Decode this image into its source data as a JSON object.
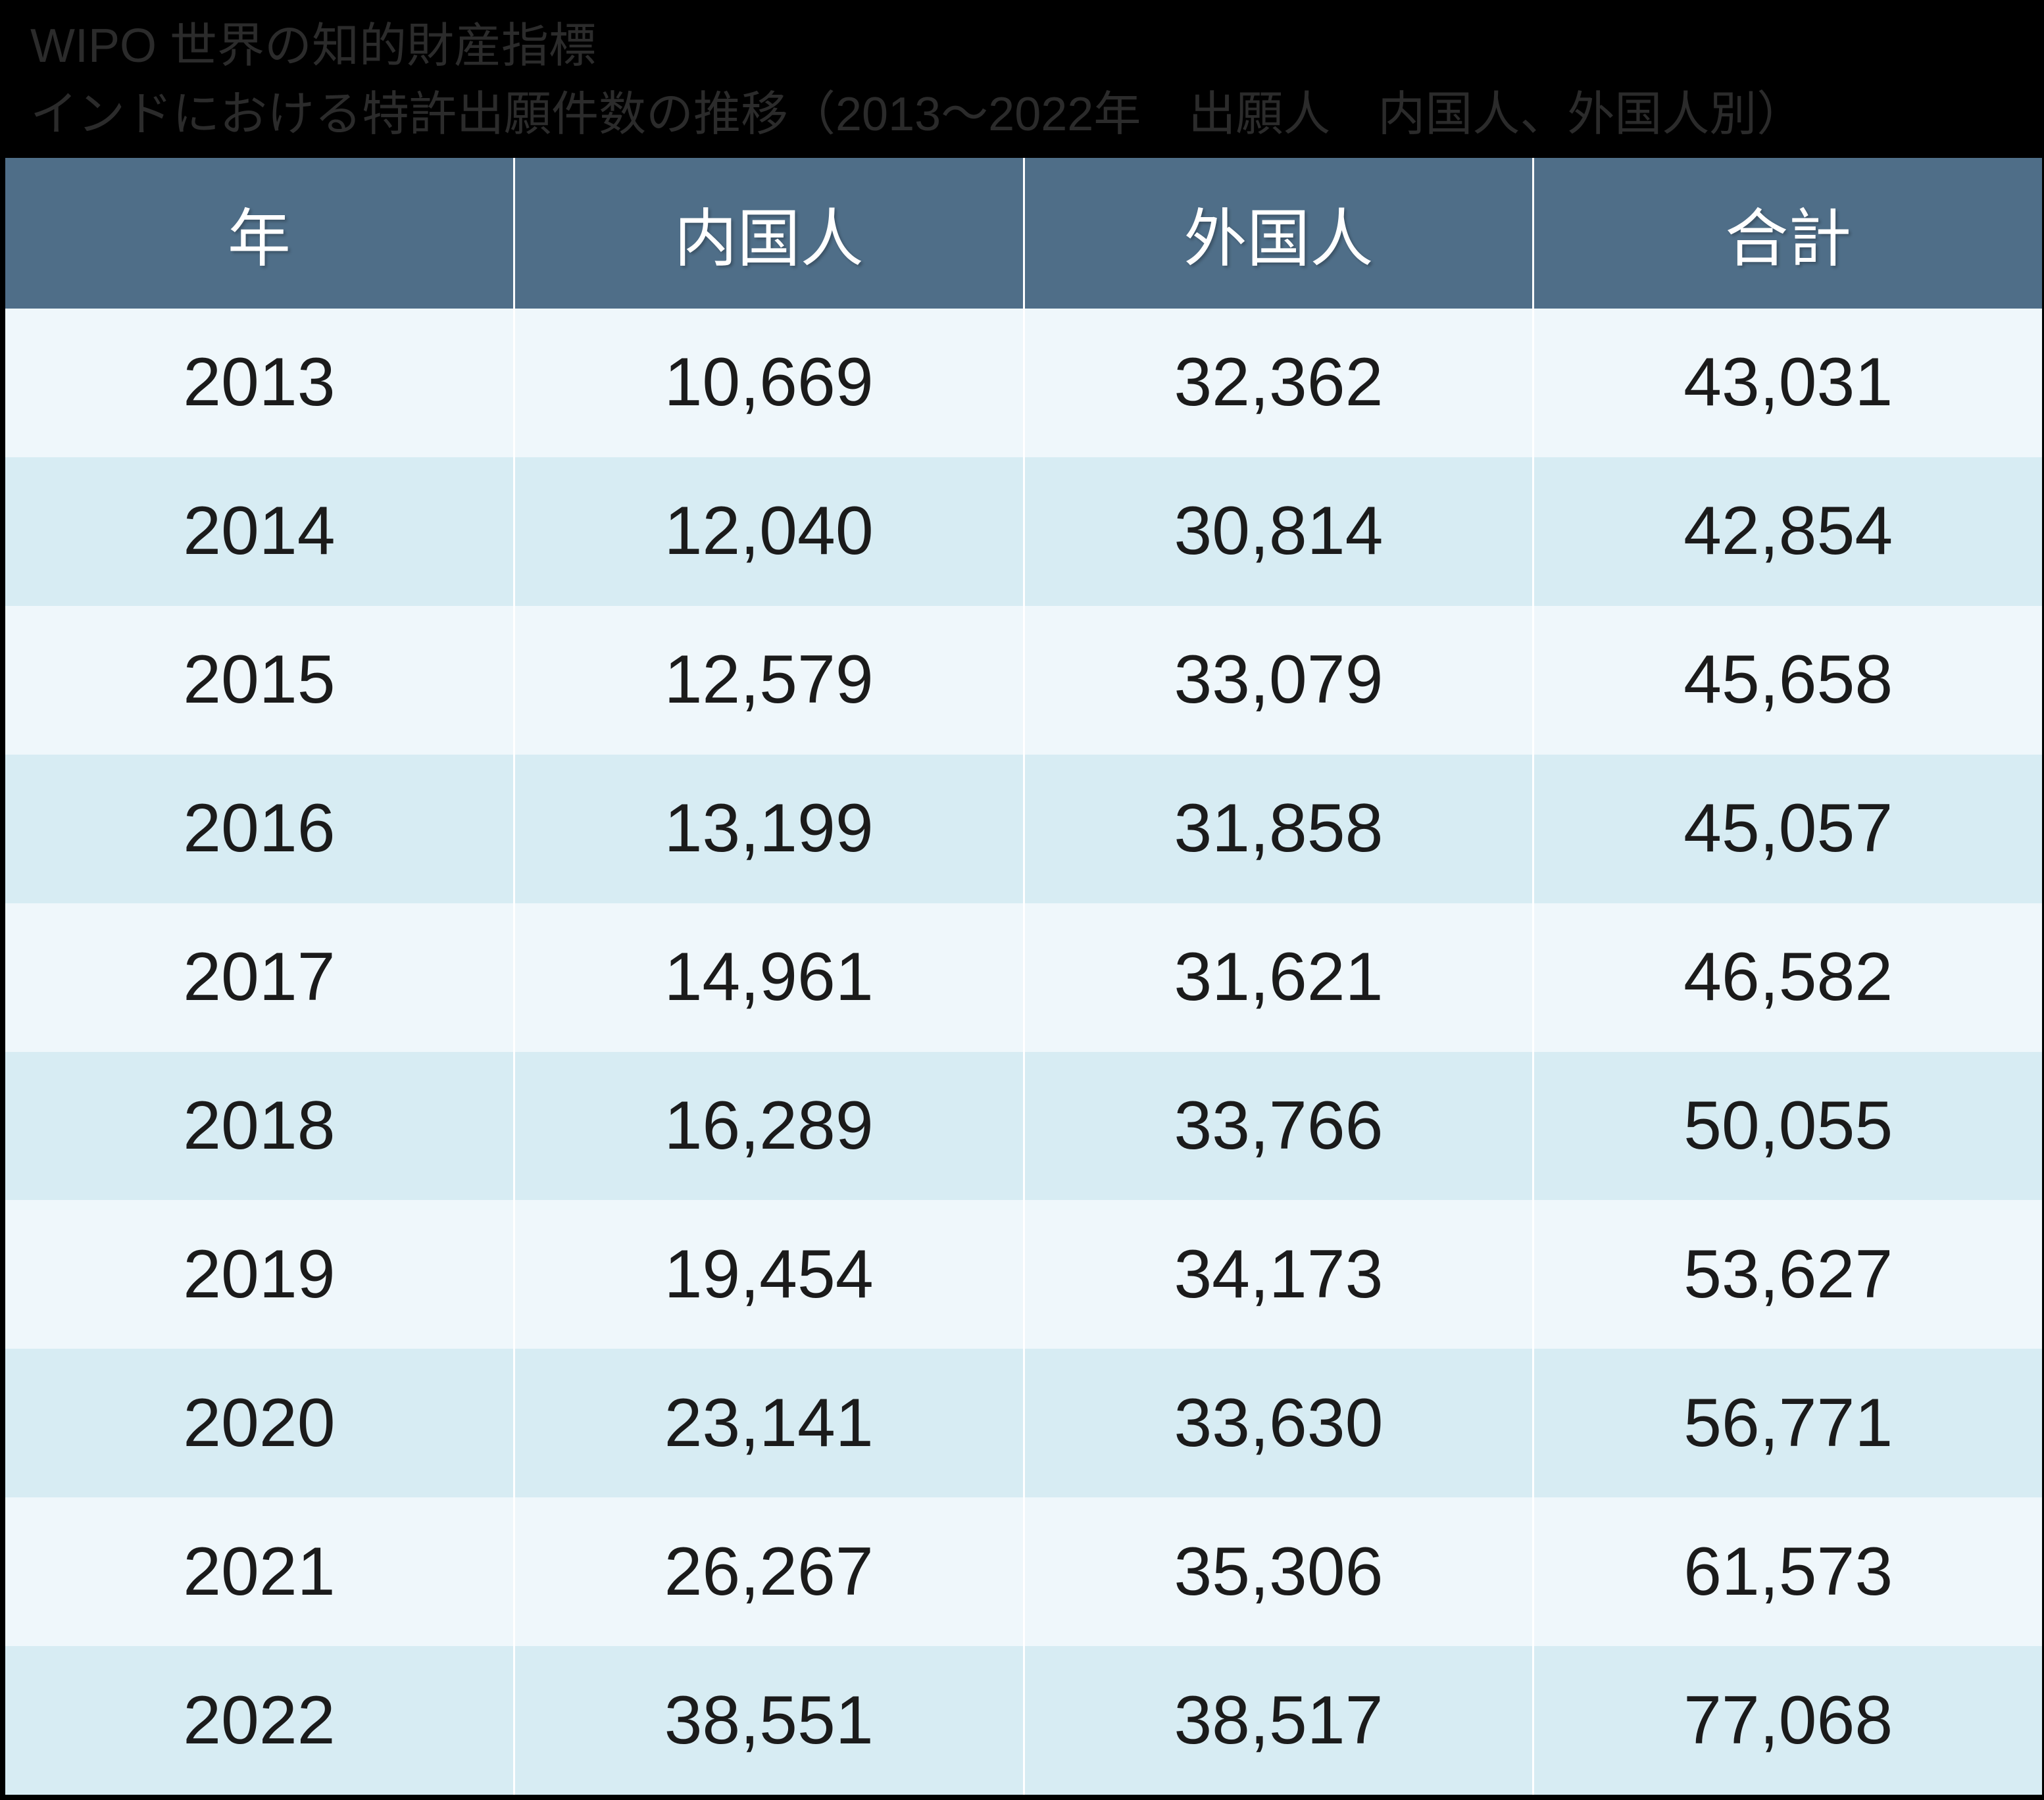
{
  "page": {
    "background": "#000000"
  },
  "title": {
    "line1": "WIPO 世界の知的財産指標",
    "line2": "インドにおける特許出願件数の推移（2013～2022年　出願人　内国人、外国人別）",
    "color": "#2b2b2b"
  },
  "table": {
    "columns": [
      "年",
      "内国人",
      "外国人",
      "合計"
    ],
    "rows": [
      [
        "2013",
        "10,669",
        "32,362",
        "43,031"
      ],
      [
        "2014",
        "12,040",
        "30,814",
        "42,854"
      ],
      [
        "2015",
        "12,579",
        "33,079",
        "45,658"
      ],
      [
        "2016",
        "13,199",
        "31,858",
        "45,057"
      ],
      [
        "2017",
        "14,961",
        "31,621",
        "46,582"
      ],
      [
        "2018",
        "16,289",
        "33,766",
        "50,055"
      ],
      [
        "2019",
        "19,454",
        "34,173",
        "53,627"
      ],
      [
        "2020",
        "23,141",
        "33,630",
        "56,771"
      ],
      [
        "2021",
        "26,267",
        "35,306",
        "61,573"
      ],
      [
        "2022",
        "38,551",
        "38,517",
        "77,068"
      ]
    ],
    "colors": {
      "page_bg": "#000000",
      "header_bg": "#4F6E88",
      "header_text": "#FFFFFF",
      "row_light": "#EFF7FB",
      "row_dark": "#D7ECF3",
      "divider": "#FFFFFF",
      "cell_text": "#1B1B1B"
    }
  },
  "chart_data": {
    "type": "table",
    "title": "WIPO 世界の知的財産指標",
    "subtitle": "インドにおける特許出願件数の推移（2013～2022年　出願人　内国人、外国人別）",
    "columns": [
      "年",
      "内国人",
      "外国人",
      "合計"
    ],
    "years": [
      2013,
      2014,
      2015,
      2016,
      2017,
      2018,
      2019,
      2020,
      2021,
      2022
    ],
    "series": [
      {
        "name": "内国人",
        "values": [
          10669,
          12040,
          12579,
          13199,
          14961,
          16289,
          19454,
          23141,
          26267,
          38551
        ]
      },
      {
        "name": "外国人",
        "values": [
          32362,
          30814,
          33079,
          31858,
          31621,
          33766,
          34173,
          33630,
          35306,
          38517
        ]
      },
      {
        "name": "合計",
        "values": [
          43031,
          42854,
          45658,
          45057,
          46582,
          50055,
          53627,
          56771,
          61573,
          77068
        ]
      }
    ],
    "layout": {
      "legend": "none",
      "grid": "column-dividers-white",
      "row_striping": true
    }
  }
}
